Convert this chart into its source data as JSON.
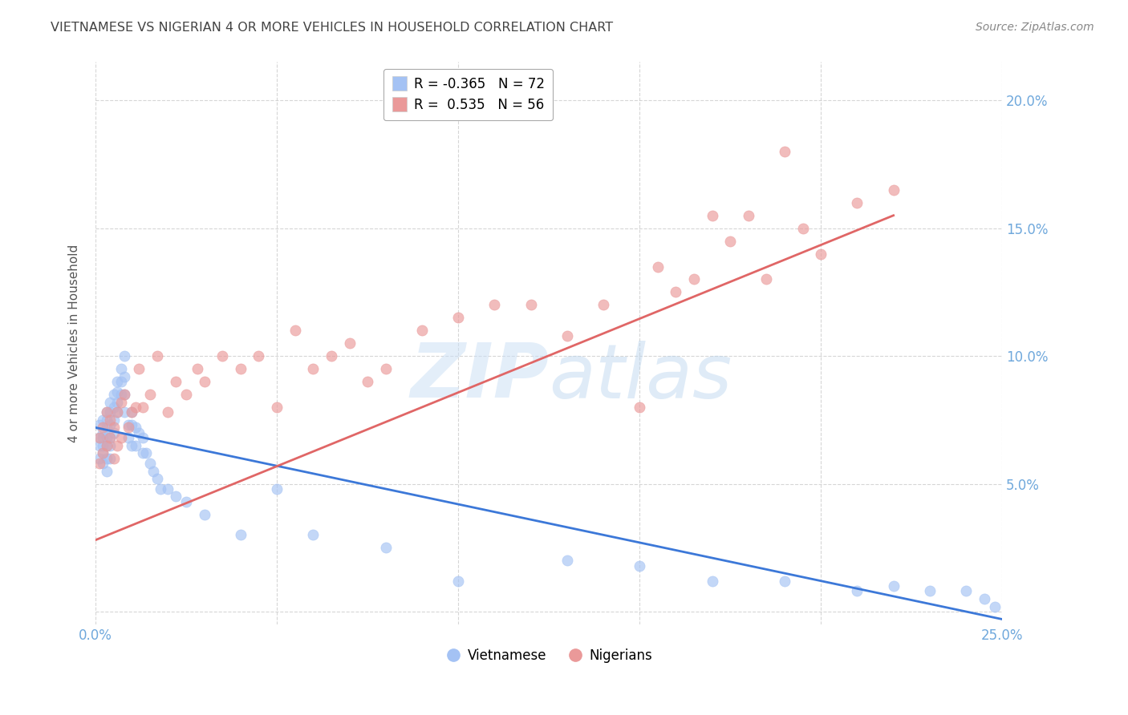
{
  "title": "VIETNAMESE VS NIGERIAN 4 OR MORE VEHICLES IN HOUSEHOLD CORRELATION CHART",
  "source": "Source: ZipAtlas.com",
  "ylabel": "4 or more Vehicles in Household",
  "xlim": [
    0.0,
    0.25
  ],
  "ylim": [
    -0.005,
    0.215
  ],
  "legend_blue_r": "-0.365",
  "legend_blue_n": "72",
  "legend_pink_r": "0.535",
  "legend_pink_n": "56",
  "blue_color": "#a4c2f4",
  "pink_color": "#ea9999",
  "line_blue_color": "#3c78d8",
  "line_pink_color": "#e06666",
  "watermark": "ZIPatlas",
  "title_color": "#434343",
  "axis_label_color": "#6fa8dc",
  "background_color": "#ffffff",
  "grid_color": "#cccccc",
  "viet_line_x0": 0.0,
  "viet_line_y0": 0.072,
  "viet_line_x1": 0.25,
  "viet_line_y1": -0.003,
  "nig_line_x0": 0.0,
  "nig_line_y0": 0.028,
  "nig_line_x1": 0.22,
  "nig_line_y1": 0.155,
  "viet_x": [
    0.001,
    0.001,
    0.001,
    0.001,
    0.002,
    0.002,
    0.002,
    0.002,
    0.002,
    0.002,
    0.003,
    0.003,
    0.003,
    0.003,
    0.003,
    0.003,
    0.003,
    0.004,
    0.004,
    0.004,
    0.004,
    0.004,
    0.004,
    0.005,
    0.005,
    0.005,
    0.005,
    0.006,
    0.006,
    0.006,
    0.006,
    0.007,
    0.007,
    0.007,
    0.008,
    0.008,
    0.008,
    0.008,
    0.009,
    0.009,
    0.01,
    0.01,
    0.01,
    0.011,
    0.011,
    0.012,
    0.013,
    0.013,
    0.014,
    0.015,
    0.016,
    0.017,
    0.018,
    0.02,
    0.022,
    0.025,
    0.03,
    0.04,
    0.05,
    0.06,
    0.08,
    0.1,
    0.13,
    0.15,
    0.17,
    0.19,
    0.21,
    0.22,
    0.23,
    0.24,
    0.245,
    0.248
  ],
  "viet_y": [
    0.073,
    0.068,
    0.065,
    0.06,
    0.075,
    0.07,
    0.068,
    0.065,
    0.062,
    0.058,
    0.078,
    0.075,
    0.072,
    0.068,
    0.065,
    0.06,
    0.055,
    0.082,
    0.078,
    0.073,
    0.068,
    0.065,
    0.06,
    0.085,
    0.08,
    0.075,
    0.07,
    0.09,
    0.086,
    0.082,
    0.078,
    0.095,
    0.09,
    0.085,
    0.1,
    0.092,
    0.085,
    0.078,
    0.073,
    0.068,
    0.078,
    0.073,
    0.065,
    0.072,
    0.065,
    0.07,
    0.068,
    0.062,
    0.062,
    0.058,
    0.055,
    0.052,
    0.048,
    0.048,
    0.045,
    0.043,
    0.038,
    0.03,
    0.048,
    0.03,
    0.025,
    0.012,
    0.02,
    0.018,
    0.012,
    0.012,
    0.008,
    0.01,
    0.008,
    0.008,
    0.005,
    0.002
  ],
  "nig_x": [
    0.001,
    0.001,
    0.002,
    0.002,
    0.003,
    0.003,
    0.004,
    0.004,
    0.005,
    0.005,
    0.006,
    0.006,
    0.007,
    0.007,
    0.008,
    0.009,
    0.01,
    0.011,
    0.012,
    0.013,
    0.015,
    0.017,
    0.02,
    0.022,
    0.025,
    0.028,
    0.03,
    0.035,
    0.04,
    0.045,
    0.05,
    0.055,
    0.06,
    0.065,
    0.07,
    0.075,
    0.08,
    0.09,
    0.1,
    0.11,
    0.12,
    0.13,
    0.14,
    0.15,
    0.155,
    0.16,
    0.165,
    0.17,
    0.175,
    0.18,
    0.185,
    0.19,
    0.195,
    0.2,
    0.21,
    0.22
  ],
  "nig_y": [
    0.068,
    0.058,
    0.072,
    0.062,
    0.078,
    0.065,
    0.075,
    0.068,
    0.072,
    0.06,
    0.078,
    0.065,
    0.082,
    0.068,
    0.085,
    0.072,
    0.078,
    0.08,
    0.095,
    0.08,
    0.085,
    0.1,
    0.078,
    0.09,
    0.085,
    0.095,
    0.09,
    0.1,
    0.095,
    0.1,
    0.08,
    0.11,
    0.095,
    0.1,
    0.105,
    0.09,
    0.095,
    0.11,
    0.115,
    0.12,
    0.12,
    0.108,
    0.12,
    0.08,
    0.135,
    0.125,
    0.13,
    0.155,
    0.145,
    0.155,
    0.13,
    0.18,
    0.15,
    0.14,
    0.16,
    0.165
  ]
}
